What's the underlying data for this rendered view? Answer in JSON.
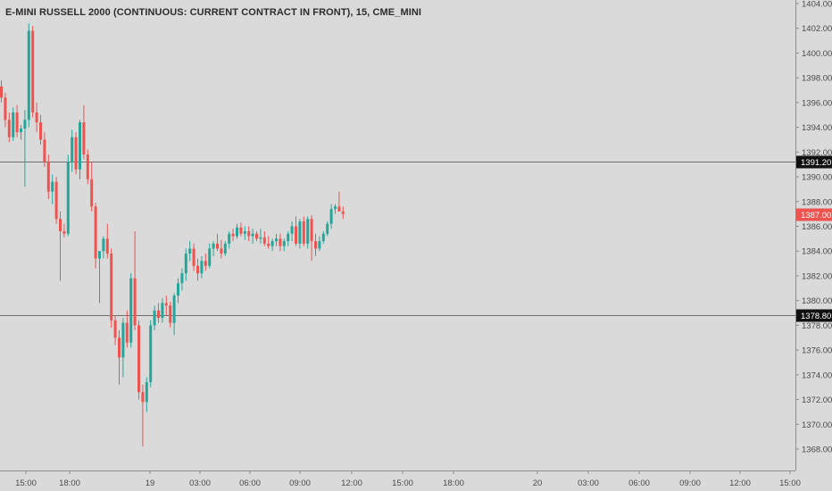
{
  "title": "E-MINI RUSSELL 2000 (CONTINUOUS: CURRENT CONTRACT IN FRONT), 15, CME_MINI",
  "colors": {
    "background": "#dadada",
    "up": "#26a69a",
    "down": "#ef5350",
    "hline": "#6e6e6e",
    "hline_badge": "#111111",
    "last_price_badge": "#ef5350",
    "axis_line": "#8c8c8c",
    "text": "#4a4a4a"
  },
  "chart_data": {
    "type": "candlestick",
    "title": "E-MINI RUSSELL 2000 (CONTINUOUS: CURRENT CONTRACT IN FRONT), 15, CME_MINI",
    "interval": "15",
    "ylim": [
      1367.0,
      1404.5
    ],
    "y_ticks": [
      "1368.00",
      "1370.00",
      "1372.00",
      "1374.00",
      "1376.00",
      "1378.00",
      "1380.00",
      "1382.00",
      "1384.00",
      "1386.00",
      "1388.00",
      "1390.00",
      "1392.00",
      "1394.00",
      "1396.00",
      "1398.00",
      "1400.00",
      "1402.00",
      "1404.00"
    ],
    "x_labels": [
      "15:00",
      "18:00",
      "19",
      "03:00",
      "06:00",
      "09:00",
      "12:00",
      "15:00",
      "18:00",
      "20",
      "03:00",
      "06:00",
      "09:00",
      "12:00",
      "15:00"
    ],
    "horizontal_lines": [
      {
        "value": 1391.2,
        "label": "1391.20"
      },
      {
        "value": 1378.8,
        "label": "1378.80"
      }
    ],
    "last_price": {
      "value": 1387.0,
      "label": "1387.00"
    },
    "candles": [
      [
        1397.3,
        1397.8,
        1396.0,
        1396.4
      ],
      [
        1396.4,
        1396.8,
        1394.0,
        1394.6
      ],
      [
        1394.6,
        1395.2,
        1392.8,
        1393.2
      ],
      [
        1393.2,
        1395.6,
        1392.9,
        1395.2
      ],
      [
        1395.2,
        1395.8,
        1393.2,
        1393.6
      ],
      [
        1393.6,
        1394.2,
        1393.0,
        1393.9
      ],
      [
        1393.9,
        1395.4,
        1389.2,
        1394.6
      ],
      [
        1394.6,
        1402.4,
        1394.0,
        1401.8
      ],
      [
        1401.8,
        1402.2,
        1394.8,
        1395.2
      ],
      [
        1395.2,
        1396.0,
        1393.6,
        1394.4
      ],
      [
        1394.4,
        1395.0,
        1392.6,
        1393.0
      ],
      [
        1393.0,
        1393.6,
        1390.8,
        1391.2
      ],
      [
        1391.2,
        1391.8,
        1388.2,
        1388.8
      ],
      [
        1388.8,
        1390.2,
        1387.8,
        1389.6
      ],
      [
        1389.6,
        1390.0,
        1386.2,
        1386.6
      ],
      [
        1386.6,
        1387.2,
        1381.6,
        1385.6
      ],
      [
        1385.6,
        1386.2,
        1385.1,
        1385.4
      ],
      [
        1385.4,
        1391.8,
        1385.2,
        1391.2
      ],
      [
        1391.2,
        1393.8,
        1390.4,
        1393.2
      ],
      [
        1393.2,
        1393.6,
        1390.2,
        1390.6
      ],
      [
        1390.6,
        1394.6,
        1389.8,
        1394.4
      ],
      [
        1394.4,
        1395.8,
        1391.4,
        1391.8
      ],
      [
        1391.8,
        1392.2,
        1389.4,
        1389.8
      ],
      [
        1389.8,
        1391.2,
        1387.2,
        1387.6
      ],
      [
        1387.6,
        1387.9,
        1382.6,
        1383.4
      ],
      [
        1383.4,
        1384.0,
        1379.8,
        1384.0
      ],
      [
        1384.0,
        1385.2,
        1383.4,
        1385.0
      ],
      [
        1385.0,
        1386.2,
        1383.4,
        1383.8
      ],
      [
        1383.8,
        1384.2,
        1377.8,
        1378.4
      ],
      [
        1378.4,
        1378.8,
        1376.4,
        1377.0
      ],
      [
        1377.0,
        1377.6,
        1373.2,
        1375.4
      ],
      [
        1375.4,
        1378.6,
        1373.8,
        1378.2
      ],
      [
        1378.2,
        1379.2,
        1376.2,
        1376.6
      ],
      [
        1376.6,
        1382.2,
        1376.2,
        1381.8
      ],
      [
        1381.8,
        1385.6,
        1377.6,
        1378.0
      ],
      [
        1378.0,
        1378.4,
        1372.0,
        1372.6
      ],
      [
        1372.6,
        1373.2,
        1368.2,
        1371.8
      ],
      [
        1371.8,
        1373.8,
        1371.0,
        1373.4
      ],
      [
        1373.4,
        1378.4,
        1373.0,
        1378.0
      ],
      [
        1378.0,
        1379.6,
        1377.6,
        1379.2
      ],
      [
        1379.2,
        1379.8,
        1378.2,
        1378.6
      ],
      [
        1378.6,
        1380.2,
        1378.2,
        1379.8
      ],
      [
        1379.8,
        1380.4,
        1378.8,
        1379.6
      ],
      [
        1379.6,
        1379.9,
        1377.8,
        1378.2
      ],
      [
        1378.2,
        1380.6,
        1377.2,
        1380.4
      ],
      [
        1380.4,
        1381.8,
        1379.8,
        1381.4
      ],
      [
        1381.4,
        1382.6,
        1380.8,
        1382.2
      ],
      [
        1382.2,
        1384.2,
        1381.6,
        1383.8
      ],
      [
        1383.8,
        1384.8,
        1383.2,
        1384.2
      ],
      [
        1384.2,
        1384.6,
        1382.4,
        1382.8
      ],
      [
        1382.8,
        1383.4,
        1381.6,
        1382.2
      ],
      [
        1382.2,
        1383.6,
        1381.8,
        1383.2
      ],
      [
        1383.2,
        1383.8,
        1382.4,
        1382.8
      ],
      [
        1382.8,
        1384.6,
        1382.6,
        1384.2
      ],
      [
        1384.2,
        1384.8,
        1383.6,
        1384.6
      ],
      [
        1384.6,
        1385.4,
        1384.0,
        1384.2
      ],
      [
        1384.2,
        1384.9,
        1383.4,
        1383.8
      ],
      [
        1383.8,
        1384.8,
        1383.6,
        1384.6
      ],
      [
        1384.6,
        1385.6,
        1384.2,
        1385.4
      ],
      [
        1385.4,
        1385.8,
        1384.8,
        1385.2
      ],
      [
        1385.2,
        1386.2,
        1385.0,
        1385.9
      ],
      [
        1385.9,
        1386.3,
        1385.2,
        1385.4
      ],
      [
        1385.4,
        1386.0,
        1384.9,
        1385.6
      ],
      [
        1385.6,
        1386.0,
        1384.8,
        1385.2
      ],
      [
        1385.2,
        1385.8,
        1384.6,
        1385.4
      ],
      [
        1385.4,
        1385.6,
        1384.8,
        1385.0
      ],
      [
        1385.0,
        1385.8,
        1384.6,
        1385.1
      ],
      [
        1385.1,
        1385.6,
        1384.4,
        1384.6
      ],
      [
        1384.6,
        1385.2,
        1384.2,
        1384.4
      ],
      [
        1384.4,
        1385.0,
        1384.0,
        1384.8
      ],
      [
        1384.8,
        1385.4,
        1384.4,
        1385.0
      ],
      [
        1385.0,
        1385.4,
        1384.0,
        1384.4
      ],
      [
        1384.4,
        1385.0,
        1384.0,
        1384.8
      ],
      [
        1384.8,
        1385.6,
        1384.4,
        1385.4
      ],
      [
        1385.4,
        1386.4,
        1384.8,
        1386.0
      ],
      [
        1386.0,
        1386.8,
        1384.4,
        1384.6
      ],
      [
        1384.6,
        1386.6,
        1384.2,
        1386.4
      ],
      [
        1386.4,
        1386.8,
        1384.4,
        1384.6
      ],
      [
        1384.6,
        1386.8,
        1384.2,
        1386.6
      ],
      [
        1386.6,
        1386.9,
        1383.2,
        1384.8
      ],
      [
        1384.8,
        1385.4,
        1383.6,
        1384.2
      ],
      [
        1384.2,
        1385.2,
        1384.0,
        1384.8
      ],
      [
        1384.8,
        1385.6,
        1384.6,
        1385.4
      ],
      [
        1385.4,
        1386.4,
        1385.2,
        1386.2
      ],
      [
        1386.2,
        1387.8,
        1385.8,
        1387.4
      ],
      [
        1387.4,
        1387.8,
        1387.0,
        1387.6
      ],
      [
        1387.6,
        1388.8,
        1387.2,
        1387.2
      ],
      [
        1387.2,
        1387.6,
        1386.6,
        1387.0
      ]
    ]
  }
}
